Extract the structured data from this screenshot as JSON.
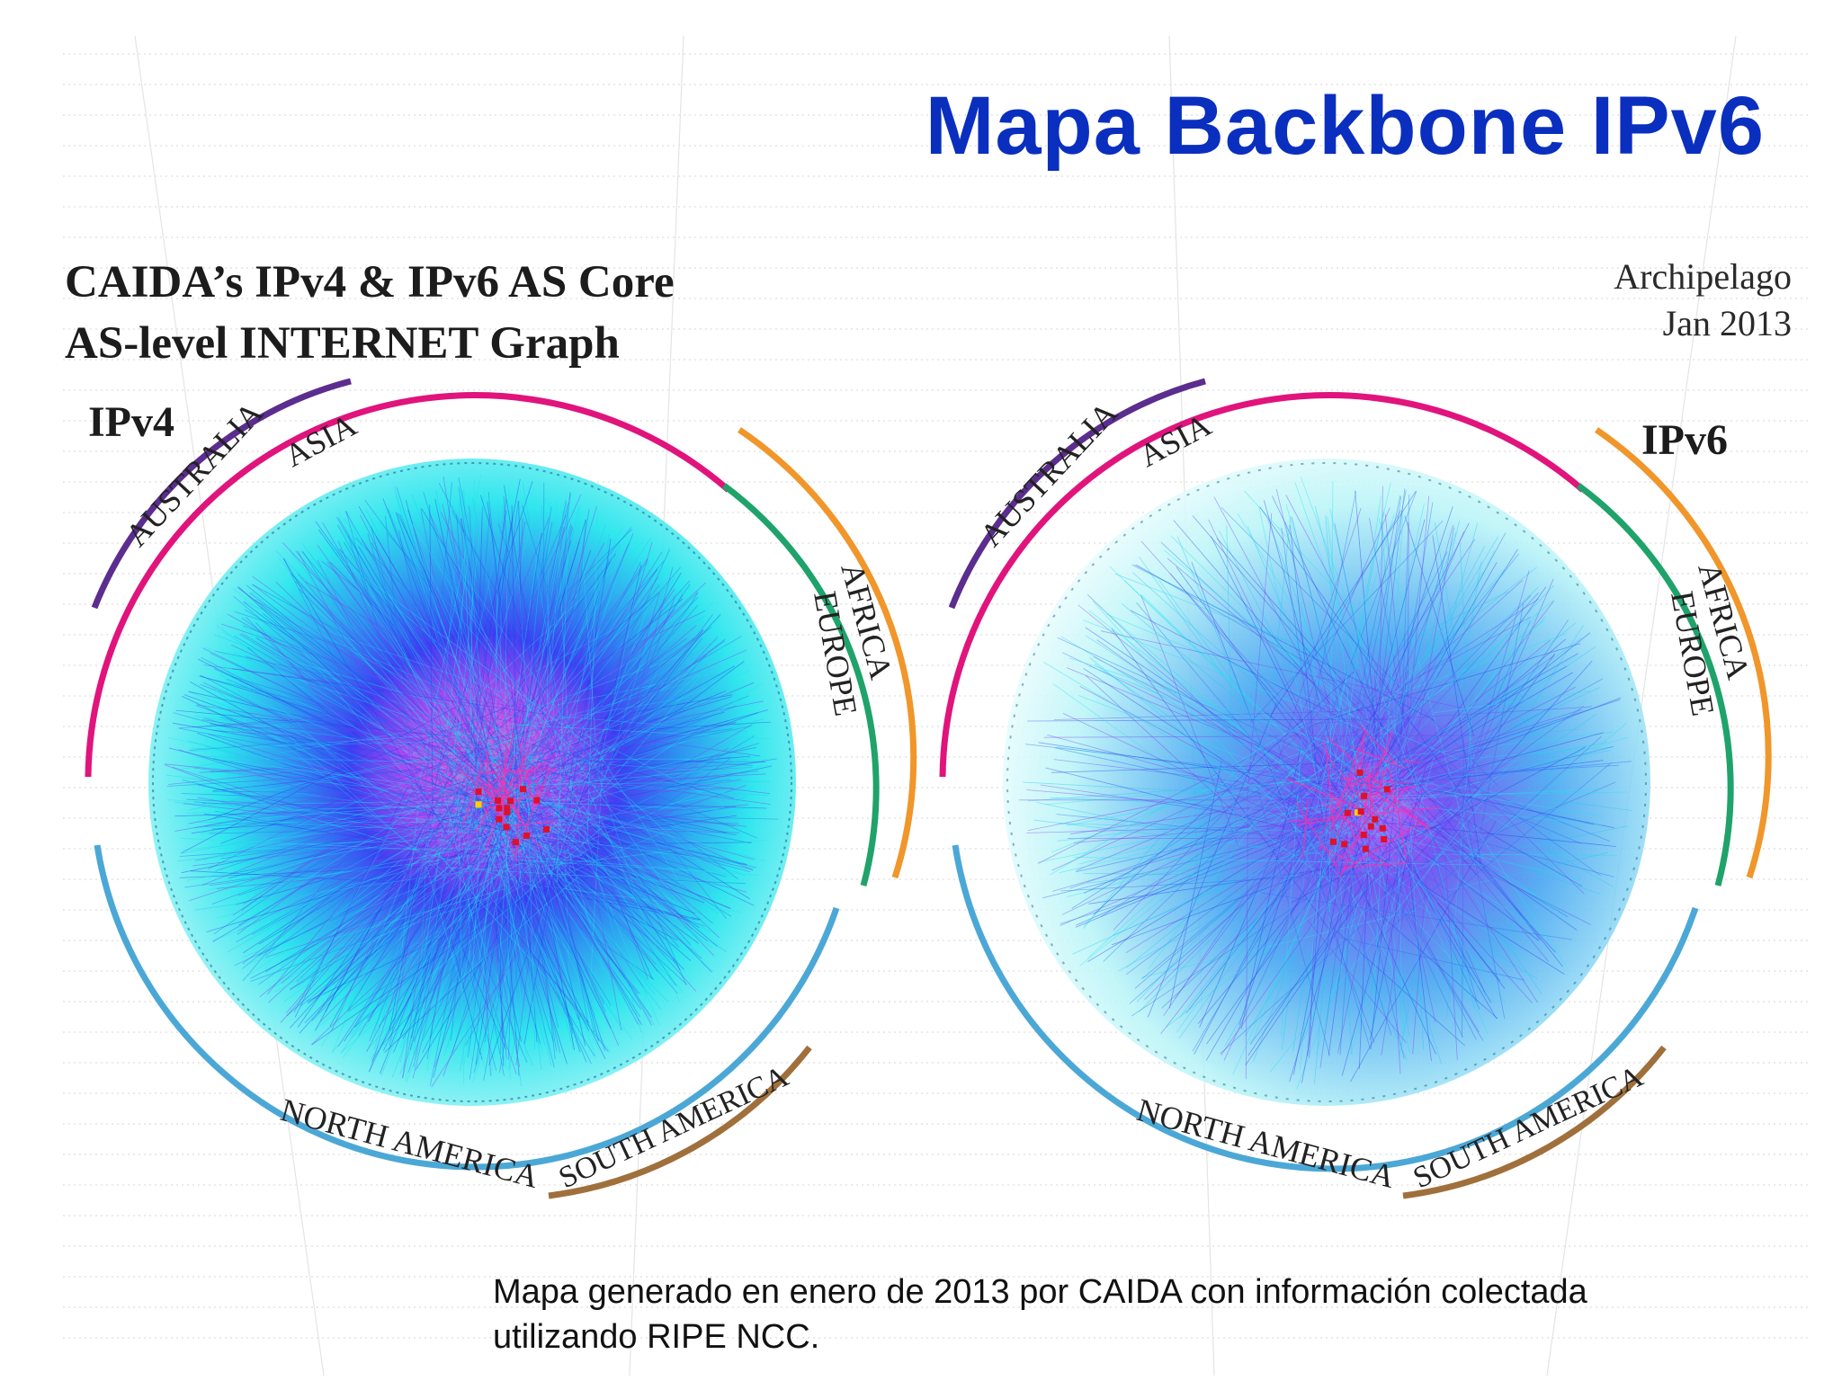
{
  "slide": {
    "title": "Mapa Backbone IPv6"
  },
  "figure": {
    "title_lines": [
      "CAIDA’s IPv4 & IPv6 AS Core",
      "AS-level INTERNET Graph"
    ],
    "source_lines": [
      "Archipelago",
      "Jan 2013"
    ],
    "graphs": [
      {
        "label": "IPv4",
        "regions": [
          "AUSTRALIA",
          "ASIA",
          "AFRICA",
          "EUROPE",
          "NORTH AMERICA",
          "SOUTH AMERICA"
        ]
      },
      {
        "label": "IPv6",
        "regions": [
          "AUSTRALIA",
          "ASIA",
          "AFRICA",
          "EUROPE",
          "NORTH AMERICA",
          "SOUTH AMERICA"
        ]
      }
    ]
  },
  "colors": {
    "title": "#0a2fbf",
    "australia": "#5b2d8e",
    "asia": "#e0147c",
    "africa": "#f0962a",
    "europe": "#1fa36b",
    "north_america": "#4ba8d6",
    "south_america": "#a0703c",
    "edge_light": "#1fe4ec",
    "edge_mid": "#2a3bef",
    "edge_core": "#ff2fb0"
  },
  "caption_lines": [
    "Mapa generado en enero de 2013 por CAIDA con información colectada",
    "utilizando RIPE NCC."
  ]
}
